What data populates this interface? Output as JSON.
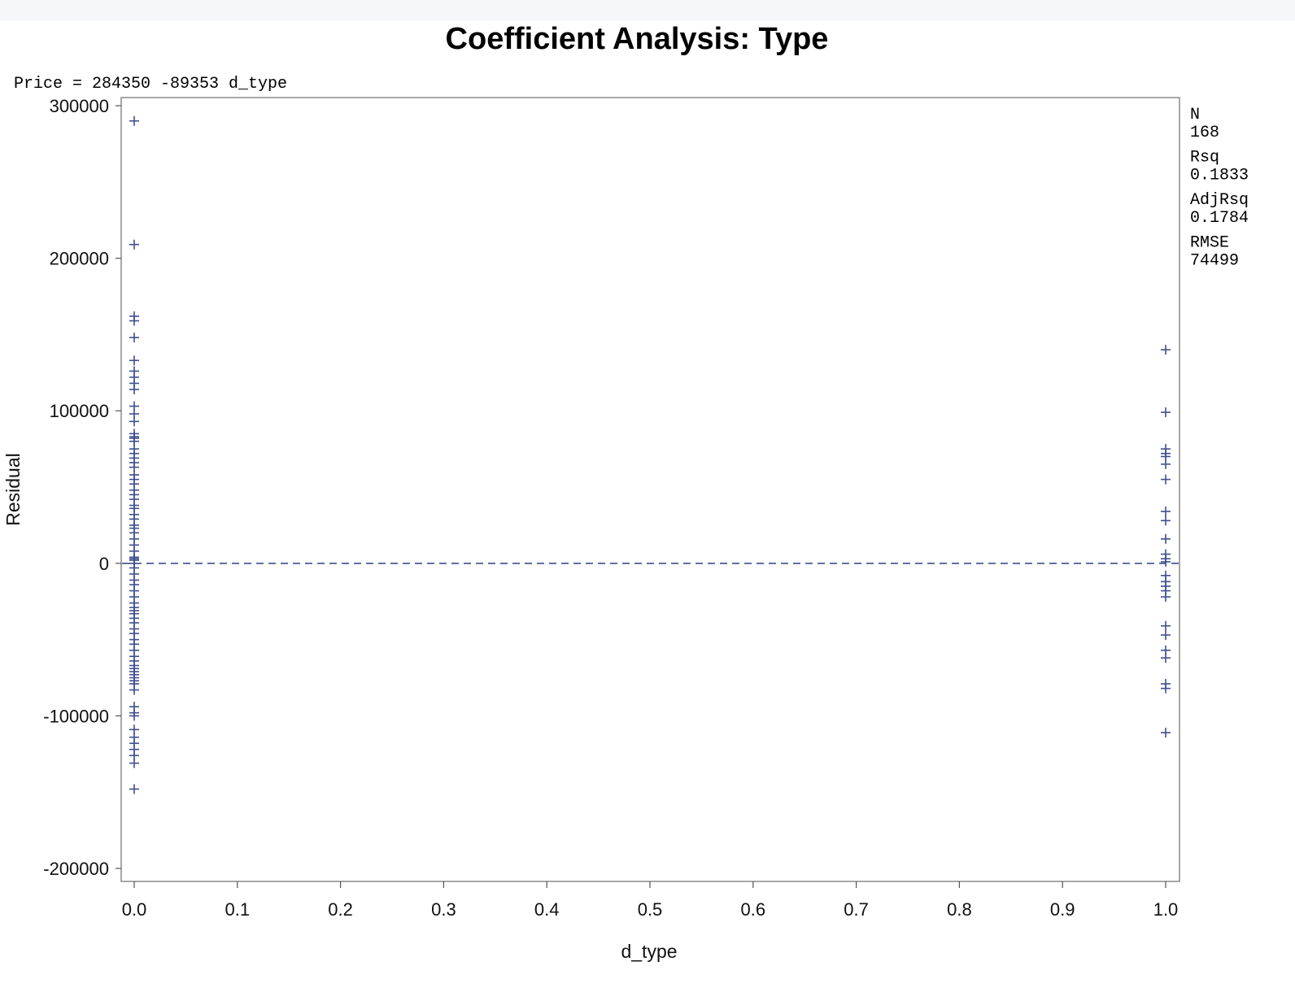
{
  "chart_data": {
    "type": "scatter",
    "title": "Coefficient Analysis: Type",
    "equation": "Price = 284350 -89353 d_type",
    "xlabel": "d_type",
    "ylabel": "Residual",
    "xlim": [
      0.0,
      1.0
    ],
    "ylim": [
      -200000,
      300000
    ],
    "x_ticks": [
      "0.0",
      "0.1",
      "0.2",
      "0.3",
      "0.4",
      "0.5",
      "0.6",
      "0.7",
      "0.8",
      "0.9",
      "1.0"
    ],
    "y_ticks": [
      "300000",
      "200000",
      "100000",
      "0",
      "-100000",
      "-200000"
    ],
    "reference_line": {
      "y": 0,
      "style": "dashed"
    },
    "marker": "plus",
    "marker_color": "#3f4f8f",
    "stats": [
      {
        "label": "N",
        "value": "168"
      },
      {
        "label": "Rsq",
        "value": "0.1833"
      },
      {
        "label": "AdjRsq",
        "value": "0.1784"
      },
      {
        "label": "RMSE",
        "value": "74499"
      }
    ],
    "series": [
      {
        "x_value": 0,
        "y": [
          290000,
          209000,
          162000,
          159000,
          148000,
          133000,
          126000,
          122000,
          118000,
          114000,
          103000,
          98000,
          93000,
          85000,
          83000,
          82000,
          80000,
          75000,
          72000,
          69000,
          66000,
          63000,
          58000,
          55000,
          52000,
          48000,
          45000,
          42000,
          38000,
          36000,
          32000,
          29000,
          25000,
          23000,
          20000,
          16000,
          12000,
          8000,
          4000,
          3000,
          2000,
          0,
          -3000,
          -7000,
          -11000,
          -14000,
          -18000,
          -22000,
          -26000,
          -29000,
          -31000,
          -33000,
          -36000,
          -39000,
          -43000,
          -46000,
          -50000,
          -53000,
          -57000,
          -61000,
          -64000,
          -67000,
          -69000,
          -71000,
          -73000,
          -75000,
          -77000,
          -79000,
          -83000,
          -94000,
          -98000,
          -100000,
          -109000,
          -114000,
          -118000,
          -122000,
          -126000,
          -131000,
          -148000
        ]
      },
      {
        "x_value": 1,
        "y": [
          140000,
          99000,
          75000,
          72000,
          70000,
          65000,
          55000,
          34000,
          28000,
          16000,
          6000,
          3000,
          1000,
          -8000,
          -12000,
          -15000,
          -18000,
          -22000,
          -41000,
          -47000,
          -57000,
          -62000,
          -79000,
          -82000,
          -111000
        ]
      }
    ]
  }
}
